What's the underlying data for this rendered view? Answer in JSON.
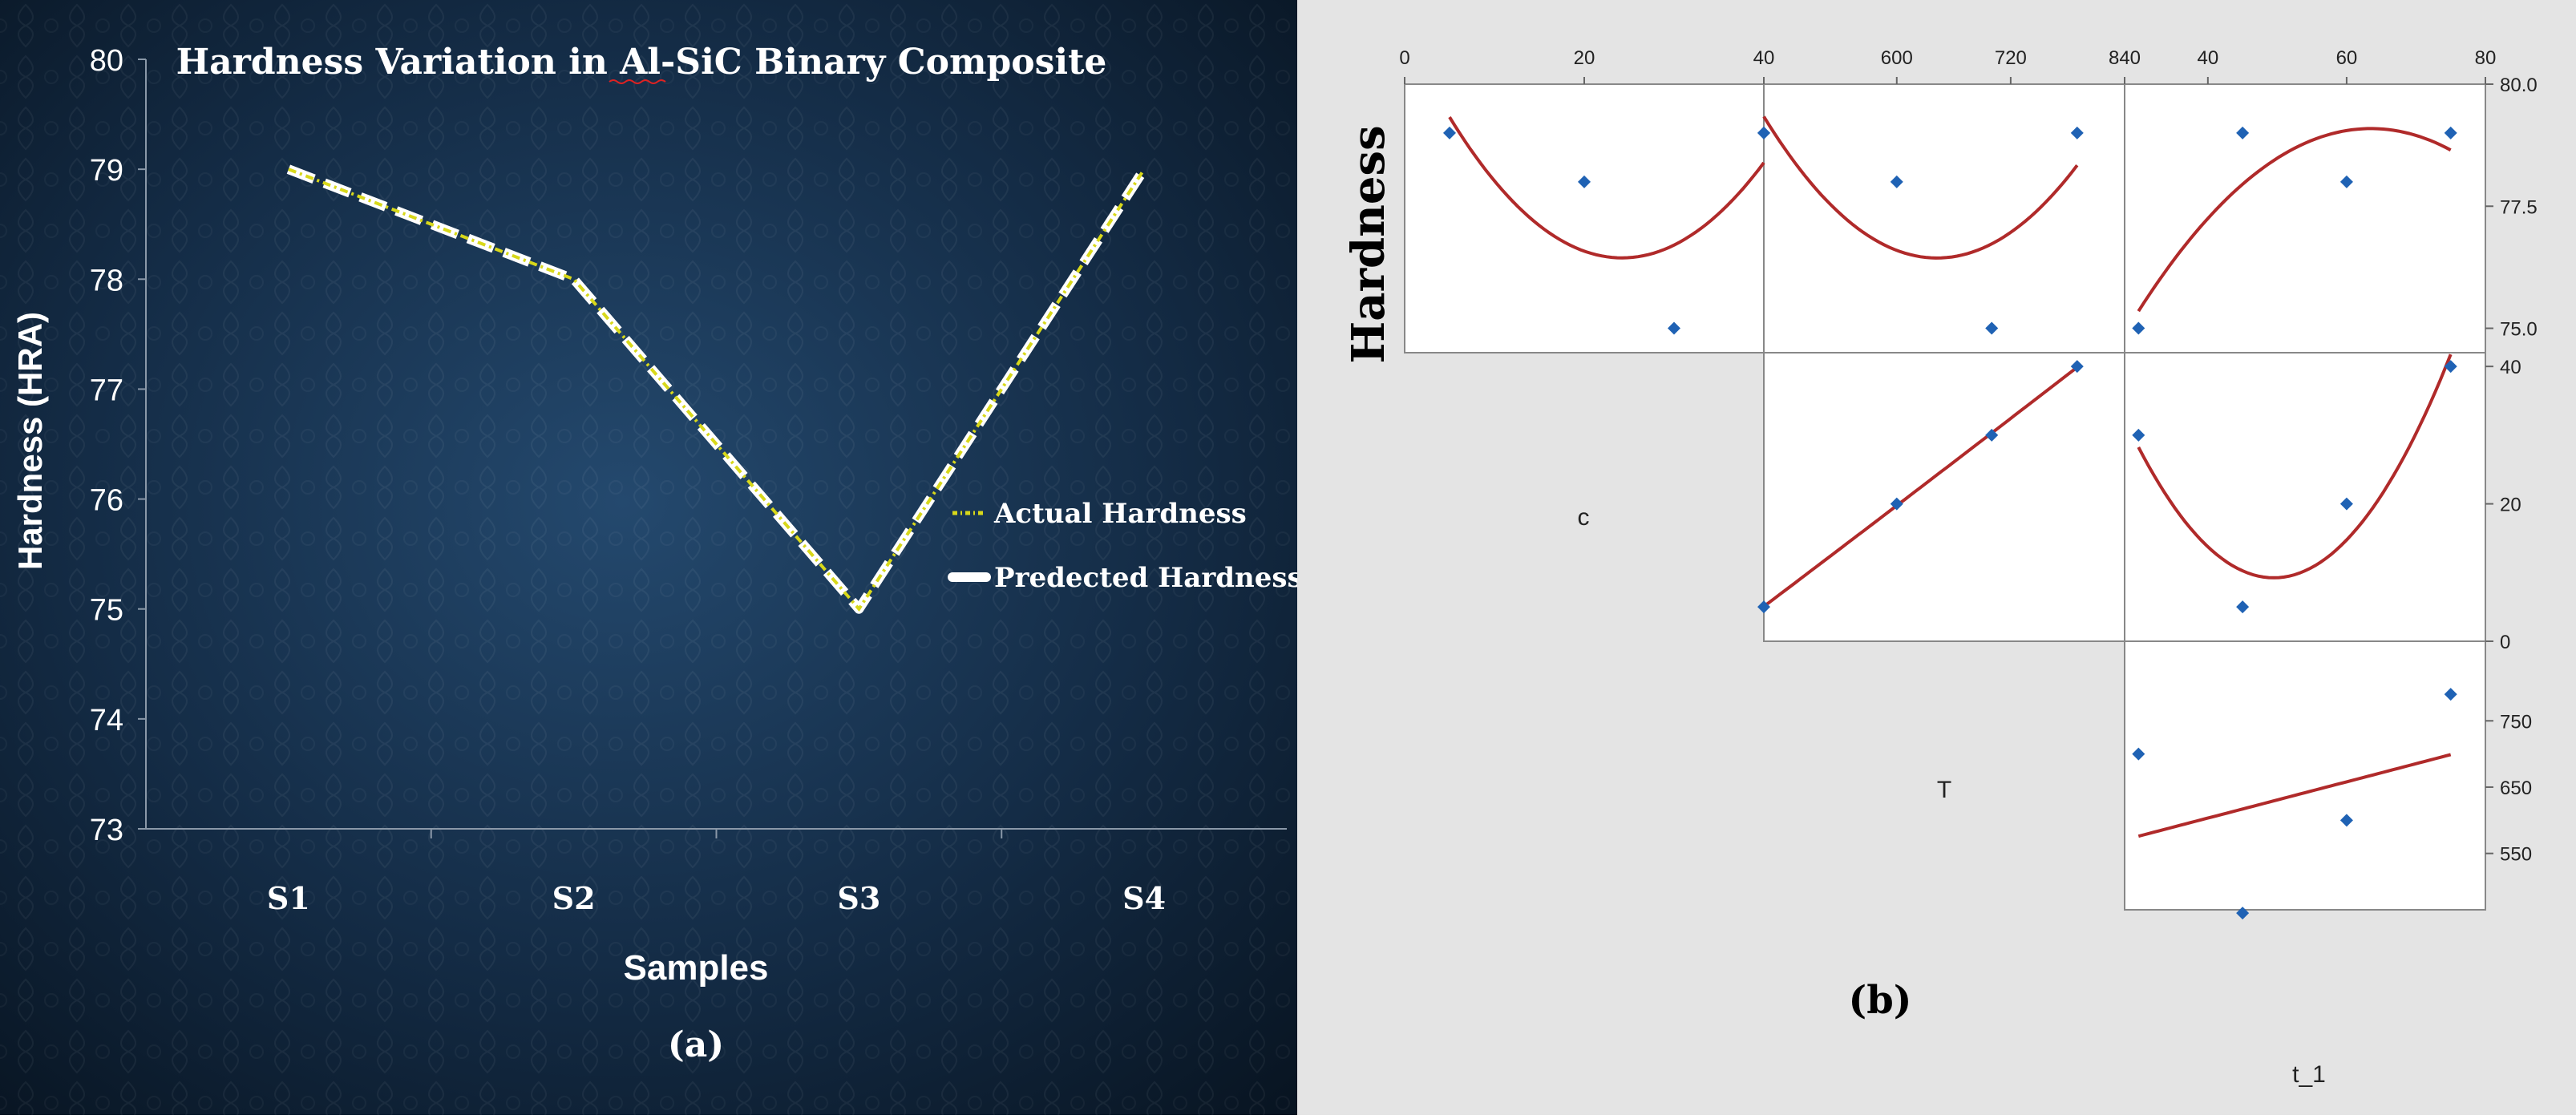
{
  "panel_a": {
    "label": "(a)",
    "chart_data": {
      "type": "line",
      "title": "Hardness Variation in Al-SiC Binary Composite",
      "xlabel": "Samples",
      "ylabel": "Hardness (HRA)",
      "categories": [
        "S1",
        "S2",
        "S3",
        "S4"
      ],
      "ylim": [
        73,
        80
      ],
      "yticks": [
        73,
        74,
        75,
        76,
        77,
        78,
        79,
        80
      ],
      "legend_position": "right",
      "grid": false,
      "series": [
        {
          "name": "Actual Hardness",
          "values": [
            79,
            78,
            75,
            79
          ],
          "color": "#d8d81a"
        },
        {
          "name": "Predected Hardness",
          "values": [
            79,
            78,
            75,
            79
          ],
          "color": "#ffffff"
        }
      ]
    }
  },
  "panel_b": {
    "label": "(b)",
    "ylabel": "Hardness",
    "var_labels": {
      "c": "c",
      "T": "T",
      "t1": "t_1"
    },
    "chart_data": {
      "type": "scatter",
      "points": [
        {
          "c": 5,
          "T": 460,
          "t1": 45,
          "hardness": 79
        },
        {
          "c": 20,
          "T": 600,
          "t1": 60,
          "hardness": 78
        },
        {
          "c": 30,
          "T": 700,
          "t1": 30,
          "hardness": 75
        },
        {
          "c": 40,
          "T": 790,
          "t1": 75,
          "hardness": 79
        }
      ],
      "axes": {
        "c_top": {
          "range": [
            0,
            40
          ],
          "ticks": [
            "0",
            "20",
            "40"
          ]
        },
        "T_top": {
          "range": [
            460,
            840
          ],
          "ticks": [
            "600",
            "720",
            "840"
          ]
        },
        "t1_top": {
          "range": [
            28,
            80
          ],
          "ticks": [
            "40",
            "60",
            "80"
          ]
        },
        "hardness_right": {
          "range": [
            74.5,
            80
          ],
          "ticks": [
            "80.0",
            "77.5",
            "75.0"
          ],
          "values": [
            80,
            77.5,
            75
          ]
        },
        "c_right": {
          "range": [
            0,
            42
          ],
          "ticks": [
            "40",
            "20",
            "0"
          ],
          "values": [
            40,
            20,
            0
          ]
        },
        "T_right": {
          "range": [
            465,
            870
          ],
          "ticks": [
            "750",
            "650",
            "550"
          ],
          "values": [
            750,
            650,
            550
          ]
        }
      },
      "fit_color": "#b02a2a",
      "point_color": "#1f62b4"
    }
  }
}
